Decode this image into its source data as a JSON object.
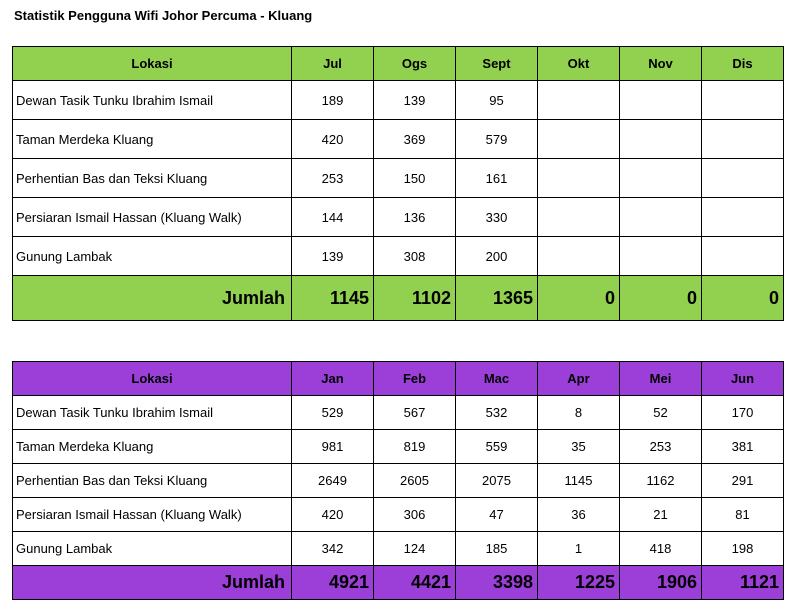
{
  "title": "Statistik Pengguna Wifi Johor Percuma - Kluang",
  "colors": {
    "green_header": "#92d050",
    "purple_header": "#9b3fd8"
  },
  "table_h2": {
    "headers": [
      "Lokasi",
      "Jul",
      "Ogs",
      "Sept",
      "Okt",
      "Nov",
      "Dis"
    ],
    "rows": [
      {
        "lokasi": "Dewan Tasik Tunku Ibrahim Ismail",
        "values": [
          "189",
          "139",
          "95",
          "",
          "",
          ""
        ]
      },
      {
        "lokasi": "Taman Merdeka Kluang",
        "values": [
          "420",
          "369",
          "579",
          "",
          "",
          ""
        ]
      },
      {
        "lokasi": "Perhentian Bas dan Teksi Kluang",
        "values": [
          "253",
          "150",
          "161",
          "",
          "",
          ""
        ]
      },
      {
        "lokasi": "Persiaran Ismail Hassan (Kluang Walk)",
        "values": [
          "144",
          "136",
          "330",
          "",
          "",
          ""
        ]
      },
      {
        "lokasi": "Gunung Lambak",
        "values": [
          "139",
          "308",
          "200",
          "",
          "",
          ""
        ]
      }
    ],
    "total_label": "Jumlah",
    "totals": [
      "1145",
      "1102",
      "1365",
      "0",
      "0",
      "0"
    ]
  },
  "table_h1": {
    "headers": [
      "Lokasi",
      "Jan",
      "Feb",
      "Mac",
      "Apr",
      "Mei",
      "Jun"
    ],
    "rows": [
      {
        "lokasi": "Dewan Tasik Tunku Ibrahim Ismail",
        "values": [
          "529",
          "567",
          "532",
          "8",
          "52",
          "170"
        ]
      },
      {
        "lokasi": "Taman Merdeka Kluang",
        "values": [
          "981",
          "819",
          "559",
          "35",
          "253",
          "381"
        ]
      },
      {
        "lokasi": "Perhentian Bas dan Teksi Kluang",
        "values": [
          "2649",
          "2605",
          "2075",
          "1145",
          "1162",
          "291"
        ]
      },
      {
        "lokasi": "Persiaran Ismail Hassan (Kluang Walk)",
        "values": [
          "420",
          "306",
          "47",
          "36",
          "21",
          "81"
        ]
      },
      {
        "lokasi": "Gunung Lambak",
        "values": [
          "342",
          "124",
          "185",
          "1",
          "418",
          "198"
        ]
      }
    ],
    "total_label": "Jumlah",
    "totals": [
      "4921",
      "4421",
      "3398",
      "1225",
      "1906",
      "1121"
    ]
  }
}
